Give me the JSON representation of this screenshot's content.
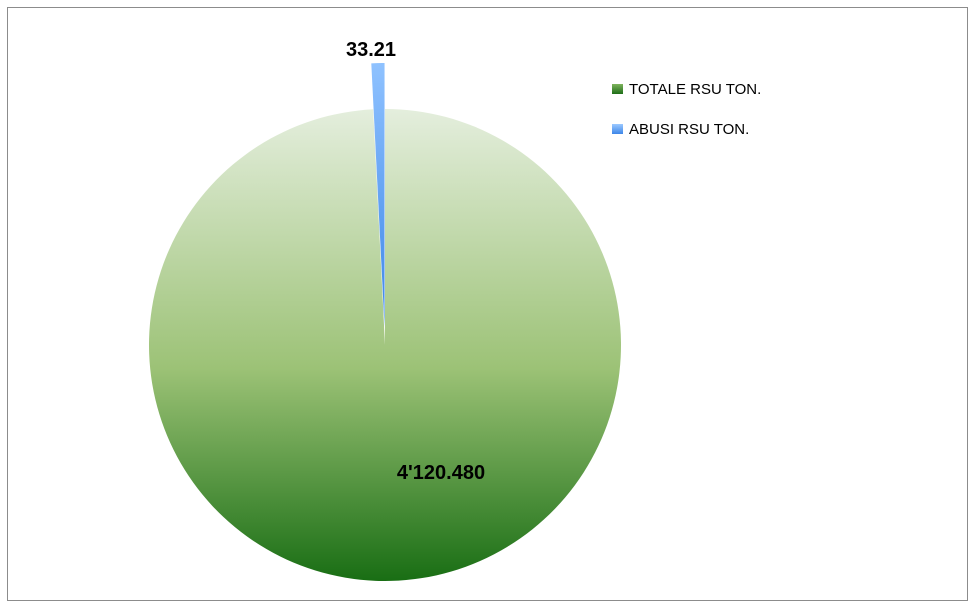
{
  "chart_data": {
    "type": "pie",
    "title": "",
    "categories": [
      "TOTALE RSU TON.",
      "ABUSI RSU TON."
    ],
    "values": [
      4120.48,
      33.21
    ],
    "data_labels": [
      "4'120.480",
      "33.21"
    ],
    "colors": [
      "#1e7a1e",
      "#5aa0f0"
    ],
    "legend_position": "top-right"
  }
}
